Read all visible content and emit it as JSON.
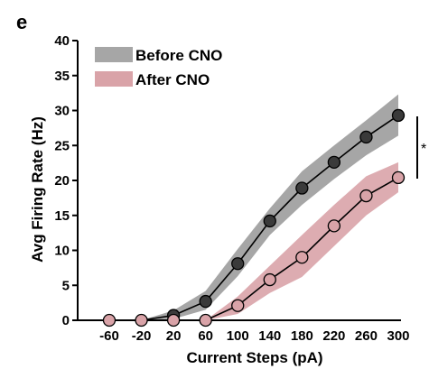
{
  "panel_label": "e",
  "chart_data": {
    "type": "line",
    "xlabel": "Current Steps (pA)",
    "ylabel": "Avg Firing Rate (Hz)",
    "ylim": [
      0,
      40
    ],
    "yticks": [
      "0",
      "5",
      "10",
      "15",
      "20",
      "25",
      "30",
      "35",
      "40"
    ],
    "categories": [
      "-60",
      "-20",
      "20",
      "60",
      "100",
      "140",
      "180",
      "220",
      "260",
      "300"
    ],
    "legend_position": "top-left",
    "grid": false,
    "significance_marker": "*",
    "series": [
      {
        "name": "Before CNO",
        "color": "#3a3a3a",
        "band_color": "#a6a6a6",
        "values": [
          0,
          0,
          0.7,
          2.7,
          8.1,
          14.2,
          18.9,
          22.6,
          26.2,
          29.3
        ],
        "lower": [
          0,
          0,
          0.2,
          1.5,
          6.3,
          12.2,
          16.5,
          20.2,
          23.6,
          26.4
        ],
        "upper": [
          0,
          0,
          1.4,
          4.2,
          10.2,
          16.0,
          21.3,
          25.0,
          28.6,
          32.3
        ]
      },
      {
        "name": "After CNO",
        "color": "#d9a3a8",
        "band_color": "#d9a3a8",
        "values": [
          0,
          0,
          0,
          0,
          2.1,
          5.8,
          9.0,
          13.5,
          17.8,
          20.4
        ],
        "lower": [
          0,
          0,
          0,
          0,
          0.9,
          3.9,
          6.2,
          10.6,
          15.0,
          18.3
        ],
        "upper": [
          0,
          0,
          0,
          0,
          3.4,
          7.8,
          12.2,
          16.5,
          20.6,
          22.6
        ]
      }
    ]
  }
}
